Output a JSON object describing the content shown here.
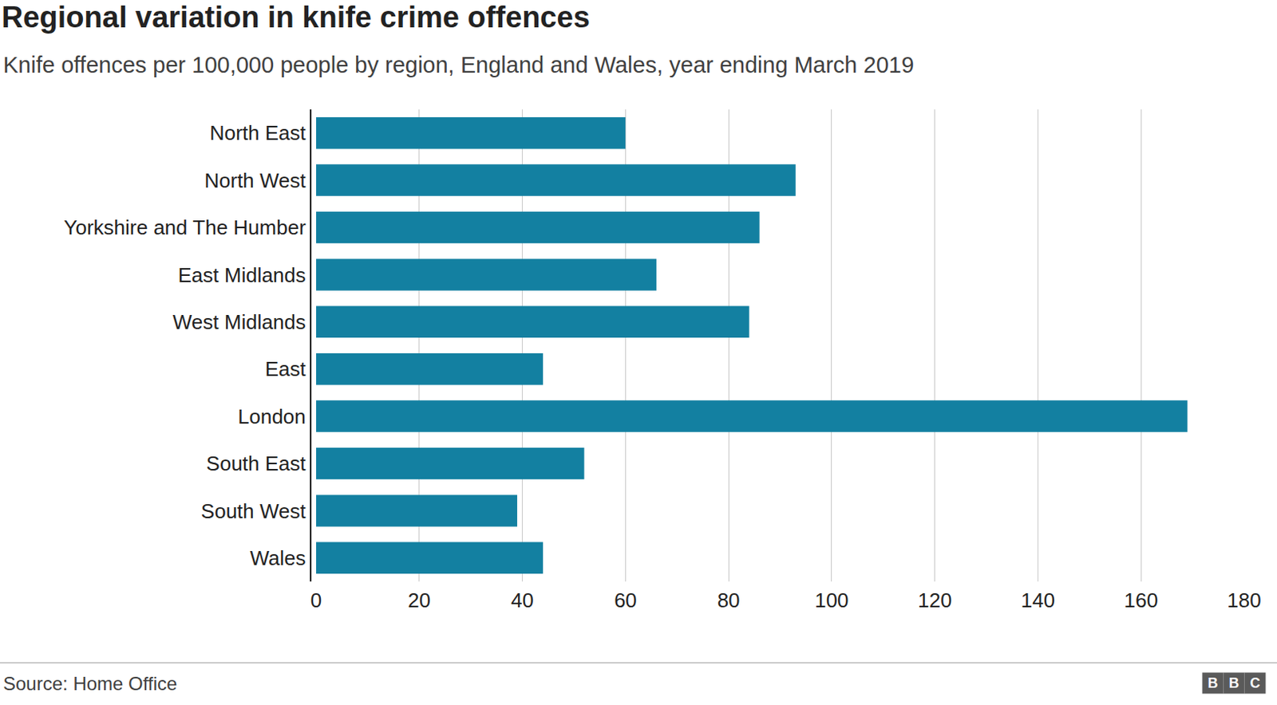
{
  "chart_data": {
    "type": "bar",
    "title": "Regional variation in knife crime offences",
    "subtitle": "Knife offences per 100,000 people by region, England and Wales, year ending March 2019",
    "source": "Source: Home Office",
    "logo": "BBC",
    "orientation": "horizontal",
    "categories": [
      "North East",
      "North West",
      "Yorkshire and The Humber",
      "East Midlands",
      "West Midlands",
      "East",
      "London",
      "South East",
      "South West",
      "Wales"
    ],
    "values": [
      60,
      93,
      86,
      66,
      84,
      44,
      169,
      52,
      39,
      44
    ],
    "color": "#1380a1",
    "xlim": [
      0,
      180
    ],
    "xticks": [
      0,
      20,
      40,
      60,
      80,
      100,
      120,
      140,
      160,
      180
    ],
    "grid": true
  }
}
